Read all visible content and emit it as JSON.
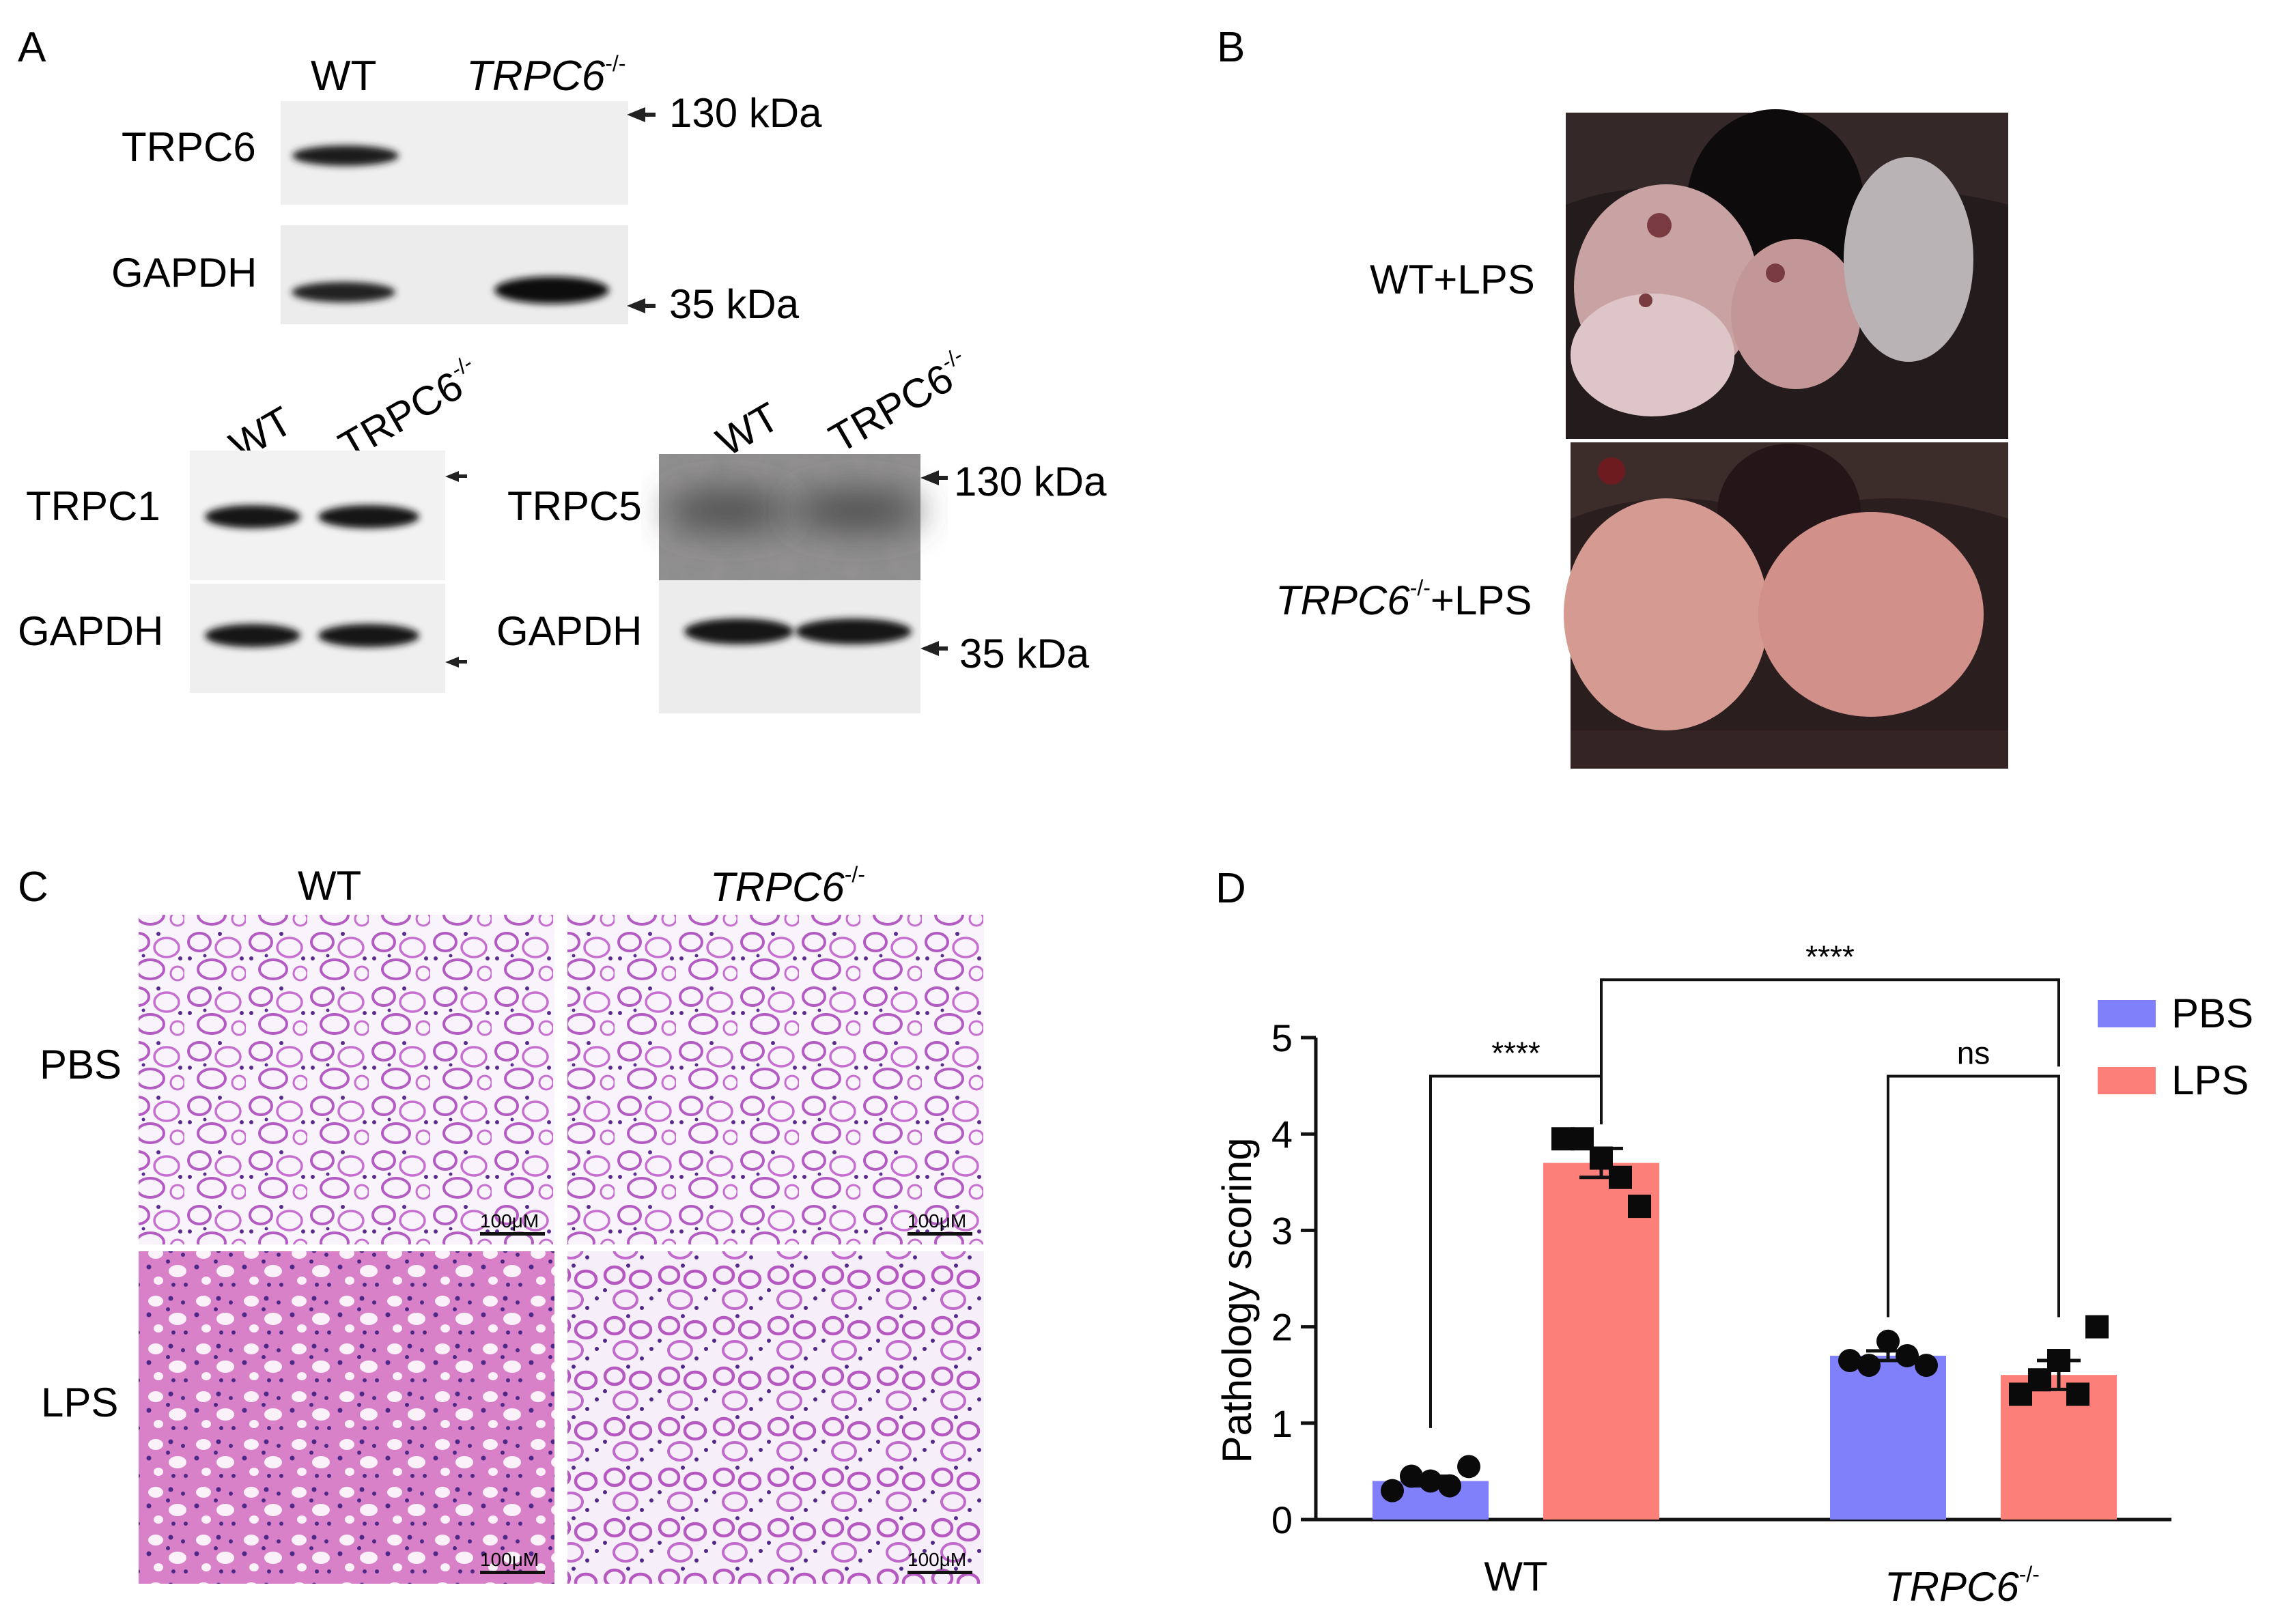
{
  "panels": {
    "a": {
      "letter": "A",
      "top_blot": {
        "lanes": [
          "WT",
          "TRPC6"
        ],
        "ko_superscript": "-/-",
        "rows": [
          "TRPC6",
          "GAPDH"
        ],
        "markers": [
          "130 kDa",
          "35  kDa"
        ]
      },
      "left_blot": {
        "lanes": [
          "WT",
          "TRPC6"
        ],
        "ko_superscript": "-/-",
        "rows": [
          "TRPC1",
          "GAPDH"
        ]
      },
      "right_blot": {
        "lanes": [
          "WT",
          "TRPC6"
        ],
        "ko_superscript": "-/-",
        "rows": [
          "TRPC5",
          "GAPDH"
        ],
        "markers": [
          "130 kDa",
          "35  kDa"
        ]
      }
    },
    "b": {
      "letter": "B",
      "rows": [
        {
          "prefix": "WT",
          "suffix": "+LPS"
        },
        {
          "prefix": "TRPC6",
          "superscript": "-/-",
          "suffix": "+LPS"
        }
      ]
    },
    "c": {
      "letter": "C",
      "columns": [
        "WT",
        "TRPC6"
      ],
      "ko_superscript": "-/-",
      "rows": [
        "PBS",
        "LPS"
      ],
      "scale_bar": "100μM"
    },
    "d": {
      "letter": "D"
    }
  },
  "chart_data": {
    "type": "bar",
    "ylabel": "Pathology scoring",
    "ylim": [
      0,
      5
    ],
    "yticks": [
      "0",
      "1",
      "2",
      "3",
      "4",
      "5"
    ],
    "categories": [
      "WT",
      "TRPC6"
    ],
    "category_superscripts": [
      "",
      "-/-"
    ],
    "series": [
      {
        "name": "PBS",
        "color": "#8080fb",
        "values": [
          0.4,
          1.7
        ],
        "sem": [
          0.05,
          0.05
        ],
        "points": [
          [
            0.3,
            0.45,
            0.4,
            0.35,
            0.55
          ],
          [
            1.65,
            1.6,
            1.85,
            1.7,
            1.6
          ]
        ],
        "marker": "circle"
      },
      {
        "name": "LPS",
        "color": "#fc8079",
        "values": [
          3.7,
          1.5
        ],
        "sem": [
          0.15,
          0.15
        ],
        "points": [
          [
            3.95,
            3.95,
            3.75,
            3.55,
            3.25
          ],
          [
            1.3,
            1.45,
            1.65,
            1.3,
            2.0
          ]
        ],
        "marker": "square"
      }
    ],
    "comparisons": [
      "****",
      "ns",
      "****"
    ],
    "legend_position": "top-right"
  }
}
